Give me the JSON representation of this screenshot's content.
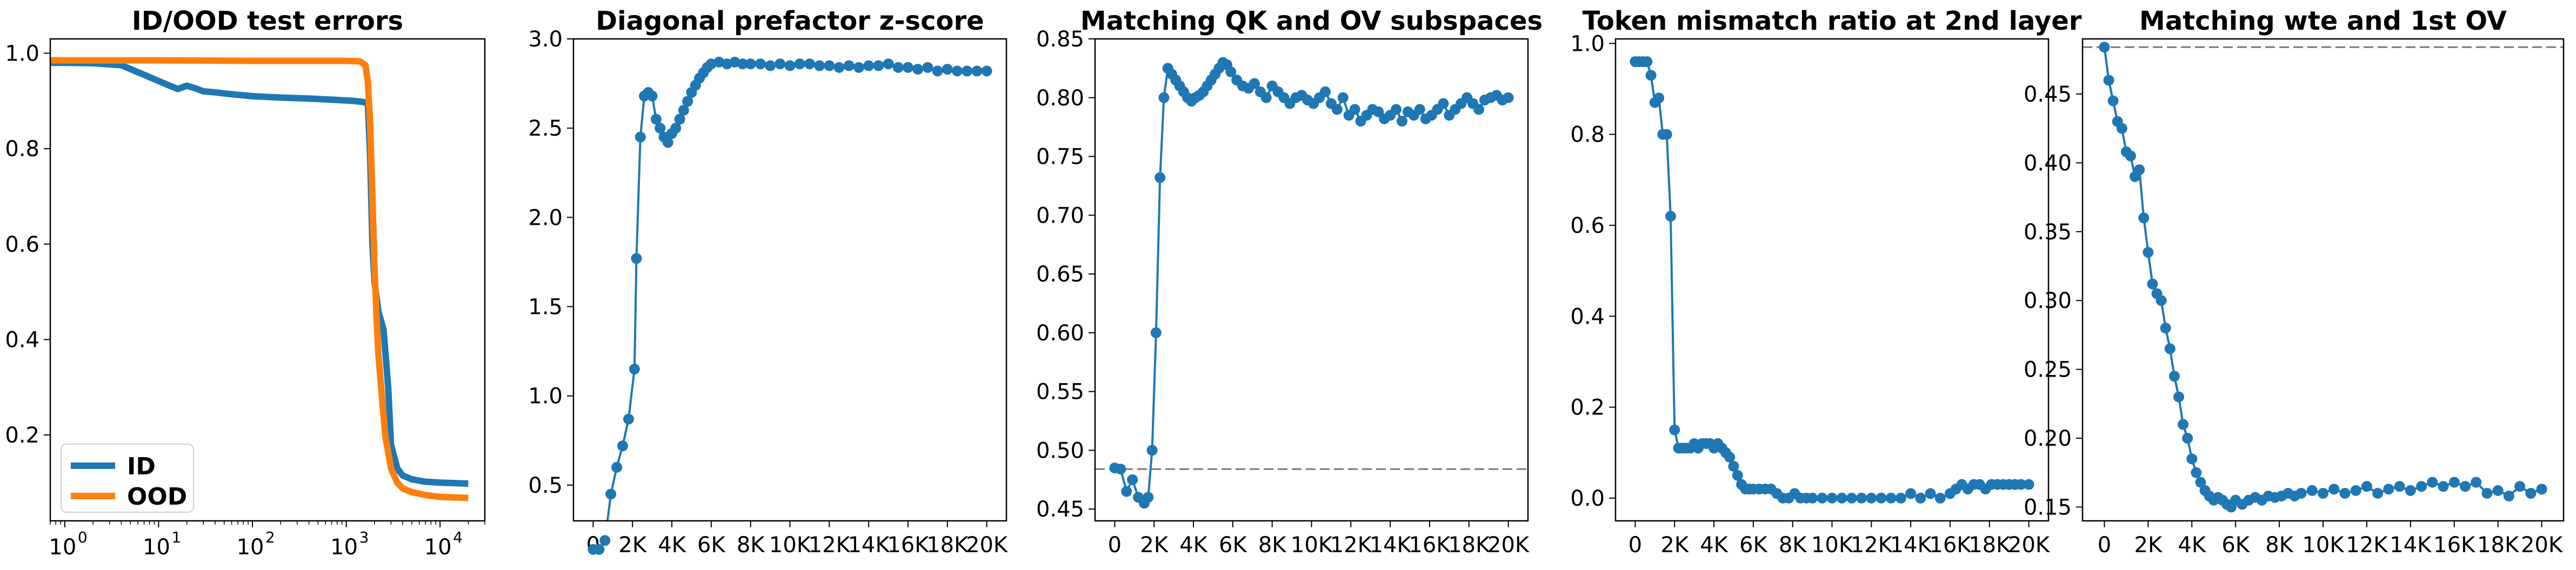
{
  "chart_data": [
    {
      "type": "line",
      "title": "ID/OOD test errors",
      "xlabel": "",
      "ylabel": "",
      "xscale": "log",
      "xlim": [
        0.7,
        30000
      ],
      "ylim": [
        0.02,
        1.03
      ],
      "x_ticks": [
        1,
        10,
        100,
        1000,
        10000
      ],
      "x_tick_labels": [
        {
          "base": "10",
          "exp": "0"
        },
        {
          "base": "10",
          "exp": "1"
        },
        {
          "base": "10",
          "exp": "2"
        },
        {
          "base": "10",
          "exp": "3"
        },
        {
          "base": "10",
          "exp": "4"
        }
      ],
      "y_ticks": [
        0.2,
        0.4,
        0.6,
        0.8,
        1.0
      ],
      "y_tick_labels": [
        "0.2",
        "0.4",
        "0.6",
        "0.8",
        "1.0"
      ],
      "legend": "lower-left",
      "grid": false,
      "series": [
        {
          "name": "ID",
          "color": "#1f77b4",
          "x": [
            0.7,
            1,
            2,
            4,
            8,
            12,
            16,
            20,
            25,
            30,
            40,
            60,
            100,
            200,
            400,
            800,
            1200,
            1500,
            1700,
            1800,
            1900,
            2000,
            2200,
            2500,
            2800,
            3000,
            3500,
            4000,
            5000,
            7000,
            10000,
            20000
          ],
          "y": [
            0.98,
            0.98,
            0.979,
            0.975,
            0.95,
            0.935,
            0.925,
            0.932,
            0.926,
            0.92,
            0.918,
            0.914,
            0.91,
            0.907,
            0.905,
            0.902,
            0.9,
            0.898,
            0.895,
            0.78,
            0.6,
            0.52,
            0.46,
            0.42,
            0.3,
            0.18,
            0.13,
            0.115,
            0.107,
            0.102,
            0.1,
            0.098
          ]
        },
        {
          "name": "OOD",
          "color": "#ff7f0e",
          "x": [
            0.7,
            1,
            10,
            100,
            500,
            1000,
            1400,
            1600,
            1700,
            1800,
            1900,
            2000,
            2100,
            2200,
            2400,
            2600,
            3000,
            3500,
            4000,
            5000,
            7000,
            10000,
            20000
          ],
          "y": [
            0.985,
            0.985,
            0.985,
            0.984,
            0.984,
            0.984,
            0.983,
            0.975,
            0.94,
            0.85,
            0.7,
            0.55,
            0.45,
            0.37,
            0.28,
            0.2,
            0.13,
            0.1,
            0.088,
            0.08,
            0.074,
            0.07,
            0.068
          ]
        }
      ]
    },
    {
      "type": "line",
      "title": "Diagonal prefactor z-score",
      "xlabel": "",
      "ylabel": "",
      "xlim": [
        -1000,
        21000
      ],
      "ylim": [
        0.3,
        3.0
      ],
      "x_ticks": [
        0,
        2000,
        4000,
        6000,
        8000,
        10000,
        12000,
        14000,
        16000,
        18000,
        20000
      ],
      "x_tick_labels": [
        "0",
        "2K",
        "4K",
        "6K",
        "8K",
        "10K",
        "12K",
        "14K",
        "16K",
        "18K",
        "20K"
      ],
      "y_ticks": [
        0.5,
        1.0,
        1.5,
        2.0,
        2.5,
        3.0
      ],
      "y_tick_labels": [
        "0.5",
        "1.0",
        "1.5",
        "2.0",
        "2.5",
        "3.0"
      ],
      "markers": true,
      "grid": false,
      "series": [
        {
          "color": "#1f77b4",
          "x": [
            0,
            300,
            600,
            900,
            1200,
            1500,
            1800,
            2100,
            2200,
            2400,
            2600,
            2800,
            3000,
            3200,
            3400,
            3600,
            3800,
            4000,
            4200,
            4400,
            4600,
            4800,
            5000,
            5200,
            5400,
            5600,
            5800,
            6000,
            6400,
            6800,
            7200,
            7600,
            8000,
            8500,
            9000,
            9500,
            10000,
            10500,
            11000,
            11500,
            12000,
            12500,
            13000,
            13500,
            14000,
            14500,
            15000,
            15500,
            16000,
            16500,
            17000,
            17500,
            18000,
            18500,
            19000,
            19500,
            20000
          ],
          "y": [
            0.14,
            0.14,
            0.19,
            0.45,
            0.6,
            0.72,
            0.87,
            1.15,
            1.77,
            2.45,
            2.68,
            2.7,
            2.68,
            2.55,
            2.5,
            2.45,
            2.42,
            2.47,
            2.5,
            2.55,
            2.6,
            2.65,
            2.7,
            2.74,
            2.78,
            2.81,
            2.84,
            2.86,
            2.87,
            2.86,
            2.87,
            2.86,
            2.86,
            2.86,
            2.85,
            2.86,
            2.85,
            2.86,
            2.86,
            2.85,
            2.85,
            2.84,
            2.85,
            2.84,
            2.85,
            2.85,
            2.86,
            2.84,
            2.84,
            2.83,
            2.84,
            2.82,
            2.83,
            2.82,
            2.82,
            2.82,
            2.82
          ]
        }
      ]
    },
    {
      "type": "line",
      "title": "Matching QK and OV subspaces",
      "xlabel": "",
      "ylabel": "",
      "xlim": [
        -1000,
        21000
      ],
      "ylim": [
        0.44,
        0.85
      ],
      "x_ticks": [
        0,
        2000,
        4000,
        6000,
        8000,
        10000,
        12000,
        14000,
        16000,
        18000,
        20000
      ],
      "x_tick_labels": [
        "0",
        "2K",
        "4K",
        "6K",
        "8K",
        "10K",
        "12K",
        "14K",
        "16K",
        "18K",
        "20K"
      ],
      "y_ticks": [
        0.45,
        0.5,
        0.55,
        0.6,
        0.65,
        0.7,
        0.75,
        0.8,
        0.85
      ],
      "y_tick_labels": [
        "0.45",
        "0.50",
        "0.55",
        "0.60",
        "0.65",
        "0.70",
        "0.75",
        "0.80",
        "0.85"
      ],
      "hline": {
        "y": 0.484,
        "style": "dashed",
        "color": "#777777"
      },
      "markers": true,
      "grid": false,
      "series": [
        {
          "color": "#1f77b4",
          "x": [
            0,
            300,
            600,
            900,
            1200,
            1500,
            1700,
            1900,
            2100,
            2300,
            2500,
            2700,
            2900,
            3100,
            3300,
            3500,
            3700,
            3900,
            4100,
            4300,
            4500,
            4700,
            4900,
            5100,
            5300,
            5500,
            5700,
            5900,
            6200,
            6500,
            6800,
            7100,
            7400,
            7700,
            8000,
            8300,
            8600,
            8900,
            9200,
            9500,
            9800,
            10100,
            10400,
            10700,
            11000,
            11300,
            11600,
            11900,
            12200,
            12500,
            12800,
            13100,
            13400,
            13700,
            14000,
            14300,
            14600,
            14900,
            15200,
            15500,
            15800,
            16100,
            16400,
            16700,
            17000,
            17300,
            17600,
            17900,
            18200,
            18500,
            18800,
            19100,
            19400,
            19700,
            20000
          ],
          "y": [
            0.485,
            0.484,
            0.465,
            0.475,
            0.46,
            0.455,
            0.46,
            0.5,
            0.6,
            0.732,
            0.8,
            0.825,
            0.82,
            0.815,
            0.81,
            0.805,
            0.8,
            0.797,
            0.8,
            0.802,
            0.805,
            0.81,
            0.815,
            0.82,
            0.825,
            0.83,
            0.828,
            0.822,
            0.815,
            0.81,
            0.808,
            0.812,
            0.805,
            0.8,
            0.81,
            0.805,
            0.8,
            0.795,
            0.8,
            0.802,
            0.798,
            0.795,
            0.8,
            0.805,
            0.795,
            0.79,
            0.8,
            0.785,
            0.79,
            0.78,
            0.785,
            0.79,
            0.788,
            0.782,
            0.785,
            0.79,
            0.78,
            0.788,
            0.785,
            0.79,
            0.782,
            0.785,
            0.79,
            0.795,
            0.785,
            0.79,
            0.795,
            0.8,
            0.795,
            0.79,
            0.798,
            0.8,
            0.802,
            0.798,
            0.8
          ]
        }
      ]
    },
    {
      "type": "line",
      "title": "Token mismatch ratio at 2nd layer",
      "xlabel": "",
      "ylabel": "",
      "xlim": [
        -1000,
        21000
      ],
      "ylim": [
        -0.05,
        1.01
      ],
      "x_ticks": [
        0,
        2000,
        4000,
        6000,
        8000,
        10000,
        12000,
        14000,
        16000,
        18000,
        20000
      ],
      "x_tick_labels": [
        "0",
        "2K",
        "4K",
        "6K",
        "8K",
        "10K",
        "12K",
        "14K",
        "16K",
        "18K",
        "20K"
      ],
      "y_ticks": [
        0.0,
        0.2,
        0.4,
        0.6,
        0.8,
        1.0
      ],
      "y_tick_labels": [
        "0.0",
        "0.2",
        "0.4",
        "0.6",
        "0.8",
        "1.0"
      ],
      "markers": true,
      "grid": false,
      "series": [
        {
          "color": "#1f77b4",
          "x": [
            0,
            200,
            400,
            600,
            800,
            1000,
            1200,
            1400,
            1600,
            1800,
            2000,
            2200,
            2400,
            2600,
            2800,
            3000,
            3200,
            3400,
            3600,
            3800,
            4000,
            4200,
            4400,
            4600,
            4800,
            5000,
            5200,
            5400,
            5600,
            5800,
            6000,
            6300,
            6600,
            6900,
            7200,
            7500,
            7800,
            8100,
            8400,
            8700,
            9000,
            9500,
            10000,
            10500,
            11000,
            11500,
            12000,
            12500,
            13000,
            13500,
            14000,
            14500,
            15000,
            15500,
            16000,
            16300,
            16600,
            16900,
            17200,
            17500,
            17800,
            18100,
            18400,
            18700,
            19000,
            19300,
            19600,
            20000
          ],
          "y": [
            0.96,
            0.96,
            0.96,
            0.96,
            0.93,
            0.87,
            0.88,
            0.8,
            0.8,
            0.62,
            0.15,
            0.11,
            0.11,
            0.11,
            0.11,
            0.12,
            0.11,
            0.12,
            0.12,
            0.12,
            0.11,
            0.12,
            0.11,
            0.1,
            0.09,
            0.07,
            0.05,
            0.03,
            0.02,
            0.02,
            0.02,
            0.02,
            0.02,
            0.02,
            0.01,
            0.0,
            0.0,
            0.01,
            0.0,
            0.0,
            0.0,
            0.0,
            0.0,
            0.0,
            0.0,
            0.0,
            0.0,
            0.0,
            0.0,
            0.0,
            0.01,
            0.0,
            0.01,
            0.0,
            0.01,
            0.02,
            0.03,
            0.02,
            0.03,
            0.03,
            0.02,
            0.03,
            0.03,
            0.03,
            0.03,
            0.03,
            0.03,
            0.03
          ]
        }
      ]
    },
    {
      "type": "line",
      "title": "Matching wte and 1st OV",
      "xlabel": "",
      "ylabel": "",
      "xlim": [
        -1000,
        21000
      ],
      "ylim": [
        0.14,
        0.49
      ],
      "x_ticks": [
        0,
        2000,
        4000,
        6000,
        8000,
        10000,
        12000,
        14000,
        16000,
        18000,
        20000
      ],
      "x_tick_labels": [
        "0",
        "2K",
        "4K",
        "6K",
        "8K",
        "10K",
        "12K",
        "14K",
        "16K",
        "18K",
        "20K"
      ],
      "y_ticks": [
        0.15,
        0.2,
        0.25,
        0.3,
        0.35,
        0.4,
        0.45
      ],
      "y_tick_labels": [
        "0.15",
        "0.20",
        "0.25",
        "0.30",
        "0.35",
        "0.40",
        "0.45"
      ],
      "hline": {
        "y": 0.484,
        "style": "dashed",
        "color": "#777777"
      },
      "markers": true,
      "grid": false,
      "series": [
        {
          "color": "#1f77b4",
          "x": [
            0,
            200,
            400,
            600,
            800,
            1000,
            1200,
            1400,
            1600,
            1800,
            2000,
            2200,
            2400,
            2600,
            2800,
            3000,
            3200,
            3400,
            3600,
            3800,
            4000,
            4200,
            4400,
            4600,
            4800,
            5000,
            5200,
            5400,
            5600,
            5800,
            6000,
            6300,
            6600,
            6900,
            7200,
            7500,
            7800,
            8100,
            8400,
            8700,
            9000,
            9500,
            10000,
            10500,
            11000,
            11500,
            12000,
            12500,
            13000,
            13500,
            14000,
            14500,
            15000,
            15500,
            16000,
            16500,
            17000,
            17500,
            18000,
            18500,
            19000,
            19500,
            20000
          ],
          "y": [
            0.484,
            0.46,
            0.445,
            0.43,
            0.425,
            0.408,
            0.405,
            0.39,
            0.395,
            0.36,
            0.335,
            0.312,
            0.305,
            0.3,
            0.28,
            0.265,
            0.245,
            0.23,
            0.21,
            0.2,
            0.185,
            0.175,
            0.168,
            0.162,
            0.158,
            0.155,
            0.157,
            0.155,
            0.152,
            0.15,
            0.155,
            0.152,
            0.155,
            0.157,
            0.155,
            0.158,
            0.157,
            0.158,
            0.16,
            0.158,
            0.16,
            0.162,
            0.16,
            0.163,
            0.16,
            0.162,
            0.165,
            0.16,
            0.163,
            0.165,
            0.162,
            0.165,
            0.168,
            0.165,
            0.168,
            0.165,
            0.168,
            0.16,
            0.162,
            0.158,
            0.165,
            0.16,
            0.163
          ]
        }
      ]
    }
  ]
}
